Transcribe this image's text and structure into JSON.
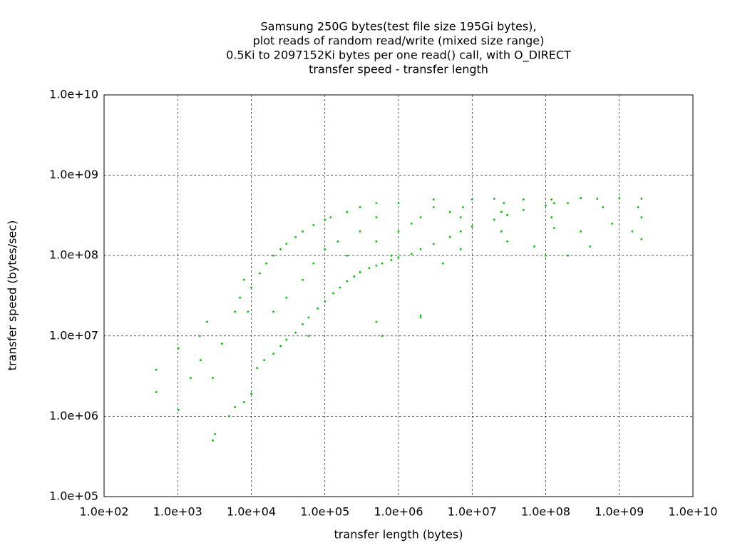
{
  "chart_data": {
    "type": "scatter",
    "title": [
      "Samsung 250G bytes(test file size 195Gi bytes),",
      "plot reads of random read/write (mixed size range)",
      "0.5Ki to 2097152Ki bytes per one read() call, with O_DIRECT",
      "transfer speed - transfer length"
    ],
    "x_label": "transfer length (bytes)",
    "y_label": "transfer speed (bytes/sec)",
    "log_x": true,
    "log_y": true,
    "grid": true,
    "color": "#00c000",
    "xlim": [
      100.0,
      10000000000.0
    ],
    "xticks": [
      {
        "value": 100.0,
        "label": "1.0e+02"
      },
      {
        "value": 1000.0,
        "label": "1.0e+03"
      },
      {
        "value": 10000.0,
        "label": "1.0e+04"
      },
      {
        "value": 100000.0,
        "label": "1.0e+05"
      },
      {
        "value": 1000000.0,
        "label": "1.0e+06"
      },
      {
        "value": 10000000.0,
        "label": "1.0e+07"
      },
      {
        "value": 100000000.0,
        "label": "1.0e+08"
      },
      {
        "value": 1000000000.0,
        "label": "1.0e+09"
      },
      {
        "value": 10000000000.0,
        "label": "1.0e+10"
      }
    ],
    "ylim": [
      100000.0,
      10000000000.0
    ],
    "yticks": [
      {
        "value": 100000.0,
        "label": "1.0e+05"
      },
      {
        "value": 1000000.0,
        "label": "1.0e+06"
      },
      {
        "value": 10000000.0,
        "label": "1.0e+07"
      },
      {
        "value": 100000000.0,
        "label": "1.0e+08"
      },
      {
        "value": 1000000000.0,
        "label": "1.0e+09"
      },
      {
        "value": 10000000000.0,
        "label": "1.0e+10"
      }
    ],
    "x": [
      512,
      512,
      1024,
      1024,
      1500,
      2000,
      2048,
      2500,
      3000,
      3200,
      3000,
      4000,
      5000,
      6000,
      6000,
      7000,
      8000,
      8000,
      9000,
      10000.0,
      12000,
      15000,
      20000,
      25000,
      30000,
      40000,
      50000,
      60000,
      80000,
      100000.0,
      130000,
      160000,
      200000.0,
      250000,
      300000.0,
      400000.0,
      500000.0,
      600000.0,
      800000.0,
      1000000.0,
      1500000.0,
      2000000.0,
      3000000.0,
      5000000.0,
      7000000.0,
      10000000.0,
      20000000.0,
      30000000.0,
      50000000.0,
      100000000.0,
      130000000.0,
      10000.0,
      13000,
      16000,
      20000.0,
      25000,
      30000.0,
      40000.0,
      50000.0,
      70000.0,
      100000.0,
      120000.0,
      200000.0,
      300000.0,
      500000.0,
      20000.0,
      30000.0,
      50000.0,
      60000.0,
      70000.0,
      100000.0,
      150000.0,
      200000.0,
      300000.0,
      500000.0,
      500000.0,
      600000.0,
      1000000.0,
      1500000.0,
      2000000.0,
      2000000.0,
      3000000.0,
      4000000.0,
      5000000.0,
      7000000.0,
      7000000.0,
      7500000.0,
      25000000.0,
      25000000.0,
      27000000.0,
      30000000.0,
      120000000.0,
      120000000.0,
      100000000.0,
      70000000.0,
      130000000.0,
      10000000.0,
      20000000.0,
      50000000.0,
      300000000.0,
      500000000.0,
      1000000000.0,
      2000000000.0,
      2000000000.0,
      2000000000.0,
      1500000000.0,
      400000000.0,
      300000000.0,
      800000000.0,
      600000000.0,
      1800000000.0,
      1000000.0,
      3000000.0,
      500000.0,
      2000000.0,
      800000.0,
      200000000.0,
      200000000.0
    ],
    "values": [
      2000000.0,
      3800000.0,
      1200000.0,
      7000000.0,
      3000000.0,
      10000000.0,
      5000000.0,
      15000000.0,
      500000.0,
      600000.0,
      3000000.0,
      8000000.0,
      1000000.0,
      1300000.0,
      20000000.0,
      30000000.0,
      1500000.0,
      50000000.0,
      20000000.0,
      1900000.0,
      4000000.0,
      5000000.0,
      6000000.0,
      7500000.0,
      9000000.0,
      11000000.0,
      14000000.0,
      17000000.0,
      22000000.0,
      27000000.0,
      34000000.0,
      40000000.0,
      48000000.0,
      55000000.0,
      62000000.0,
      70000000.0,
      75000000.0,
      80000000.0,
      88000000.0,
      95000000.0,
      105000000.0,
      120000000.0,
      140000000.0,
      170000000.0,
      200000000.0,
      230000000.0,
      280000000.0,
      320000000.0,
      370000000.0,
      420000000.0,
      450000000.0,
      40000000.0,
      60000000.0,
      80000000.0,
      100000000.0,
      120000000.0,
      140000000.0,
      170000000.0,
      200000000.0,
      240000000.0,
      280000000.0,
      300000000.0,
      350000000.0,
      400000000.0,
      450000000.0,
      20000000.0,
      30000000.0,
      50000000.0,
      10000000.0,
      80000000.0,
      120000000.0,
      150000000.0,
      100000000.0,
      200000000.0,
      150000000.0,
      15000000.0,
      10000000.0,
      200000000.0,
      250000000.0,
      18000000.0,
      300000000.0,
      400000000.0,
      80000000.0,
      350000000.0,
      120000000.0,
      300000000.0,
      400000000.0,
      200000000.0,
      350000000.0,
      450000000.0,
      150000000.0,
      300000000.0,
      500000000.0,
      100000000.0,
      130000000.0,
      220000000.0,
      500000000.0,
      510000000.0,
      500000000.0,
      520000000.0,
      510000000.0,
      520000000.0,
      510000000.0,
      300000000.0,
      160000000.0,
      200000000.0,
      130000000.0,
      200000000.0,
      250000000.0,
      400000000.0,
      400000000.0,
      450000000.0,
      500000000.0,
      300000000.0,
      17000000.0,
      100000000.0,
      450000000.0,
      100000000.0
    ]
  }
}
